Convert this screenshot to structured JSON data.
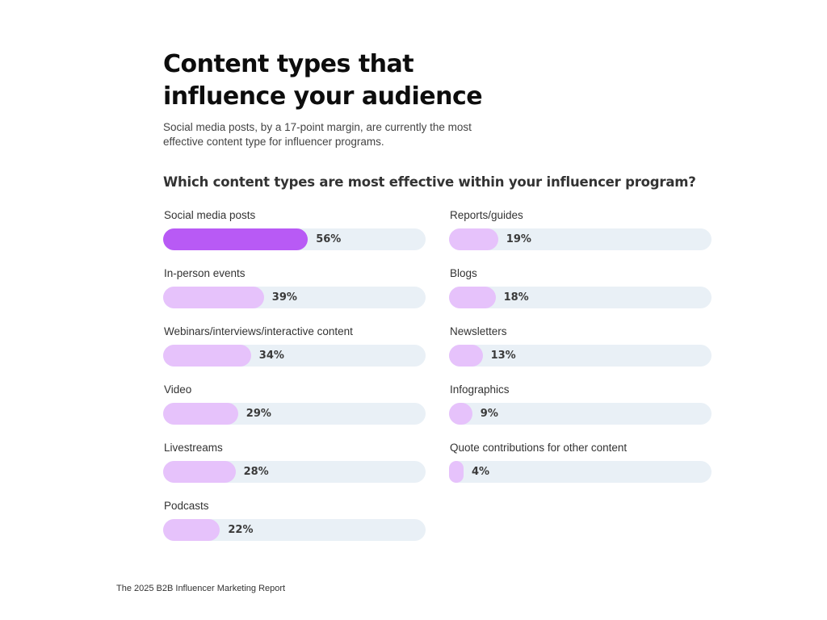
{
  "title_lines": [
    "Content types that",
    "influence your audience"
  ],
  "subtitle_lines": [
    "Social media posts, by a 17-point margin, are currently the most",
    "effective content type for influencer programs."
  ],
  "question": "Which content types are most effective within your influencer program?",
  "footer": "The 2025 B2B Influencer Marketing Report",
  "colors": {
    "highlight_bar": "#b85af5",
    "bar": "#e6c2fb",
    "track": "#e9f0f6"
  },
  "chart_data": {
    "type": "bar",
    "orientation": "horizontal",
    "title": "Which content types are most effective within your influencer program?",
    "xlim": [
      0,
      100
    ],
    "grid": false,
    "categories": [
      "Social media posts",
      "In-person events",
      "Webinars/interviews/interactive content",
      "Video",
      "Livestreams",
      "Podcasts",
      "Reports/guides",
      "Blogs",
      "Newsletters",
      "Infographics",
      "Quote contributions for other content"
    ],
    "values": [
      56,
      39,
      34,
      29,
      28,
      22,
      19,
      18,
      13,
      9,
      4
    ],
    "value_labels": [
      "56%",
      "39%",
      "34%",
      "29%",
      "28%",
      "22%",
      "19%",
      "18%",
      "13%",
      "9%",
      "4%"
    ],
    "highlighted": [
      "Social media posts"
    ]
  }
}
